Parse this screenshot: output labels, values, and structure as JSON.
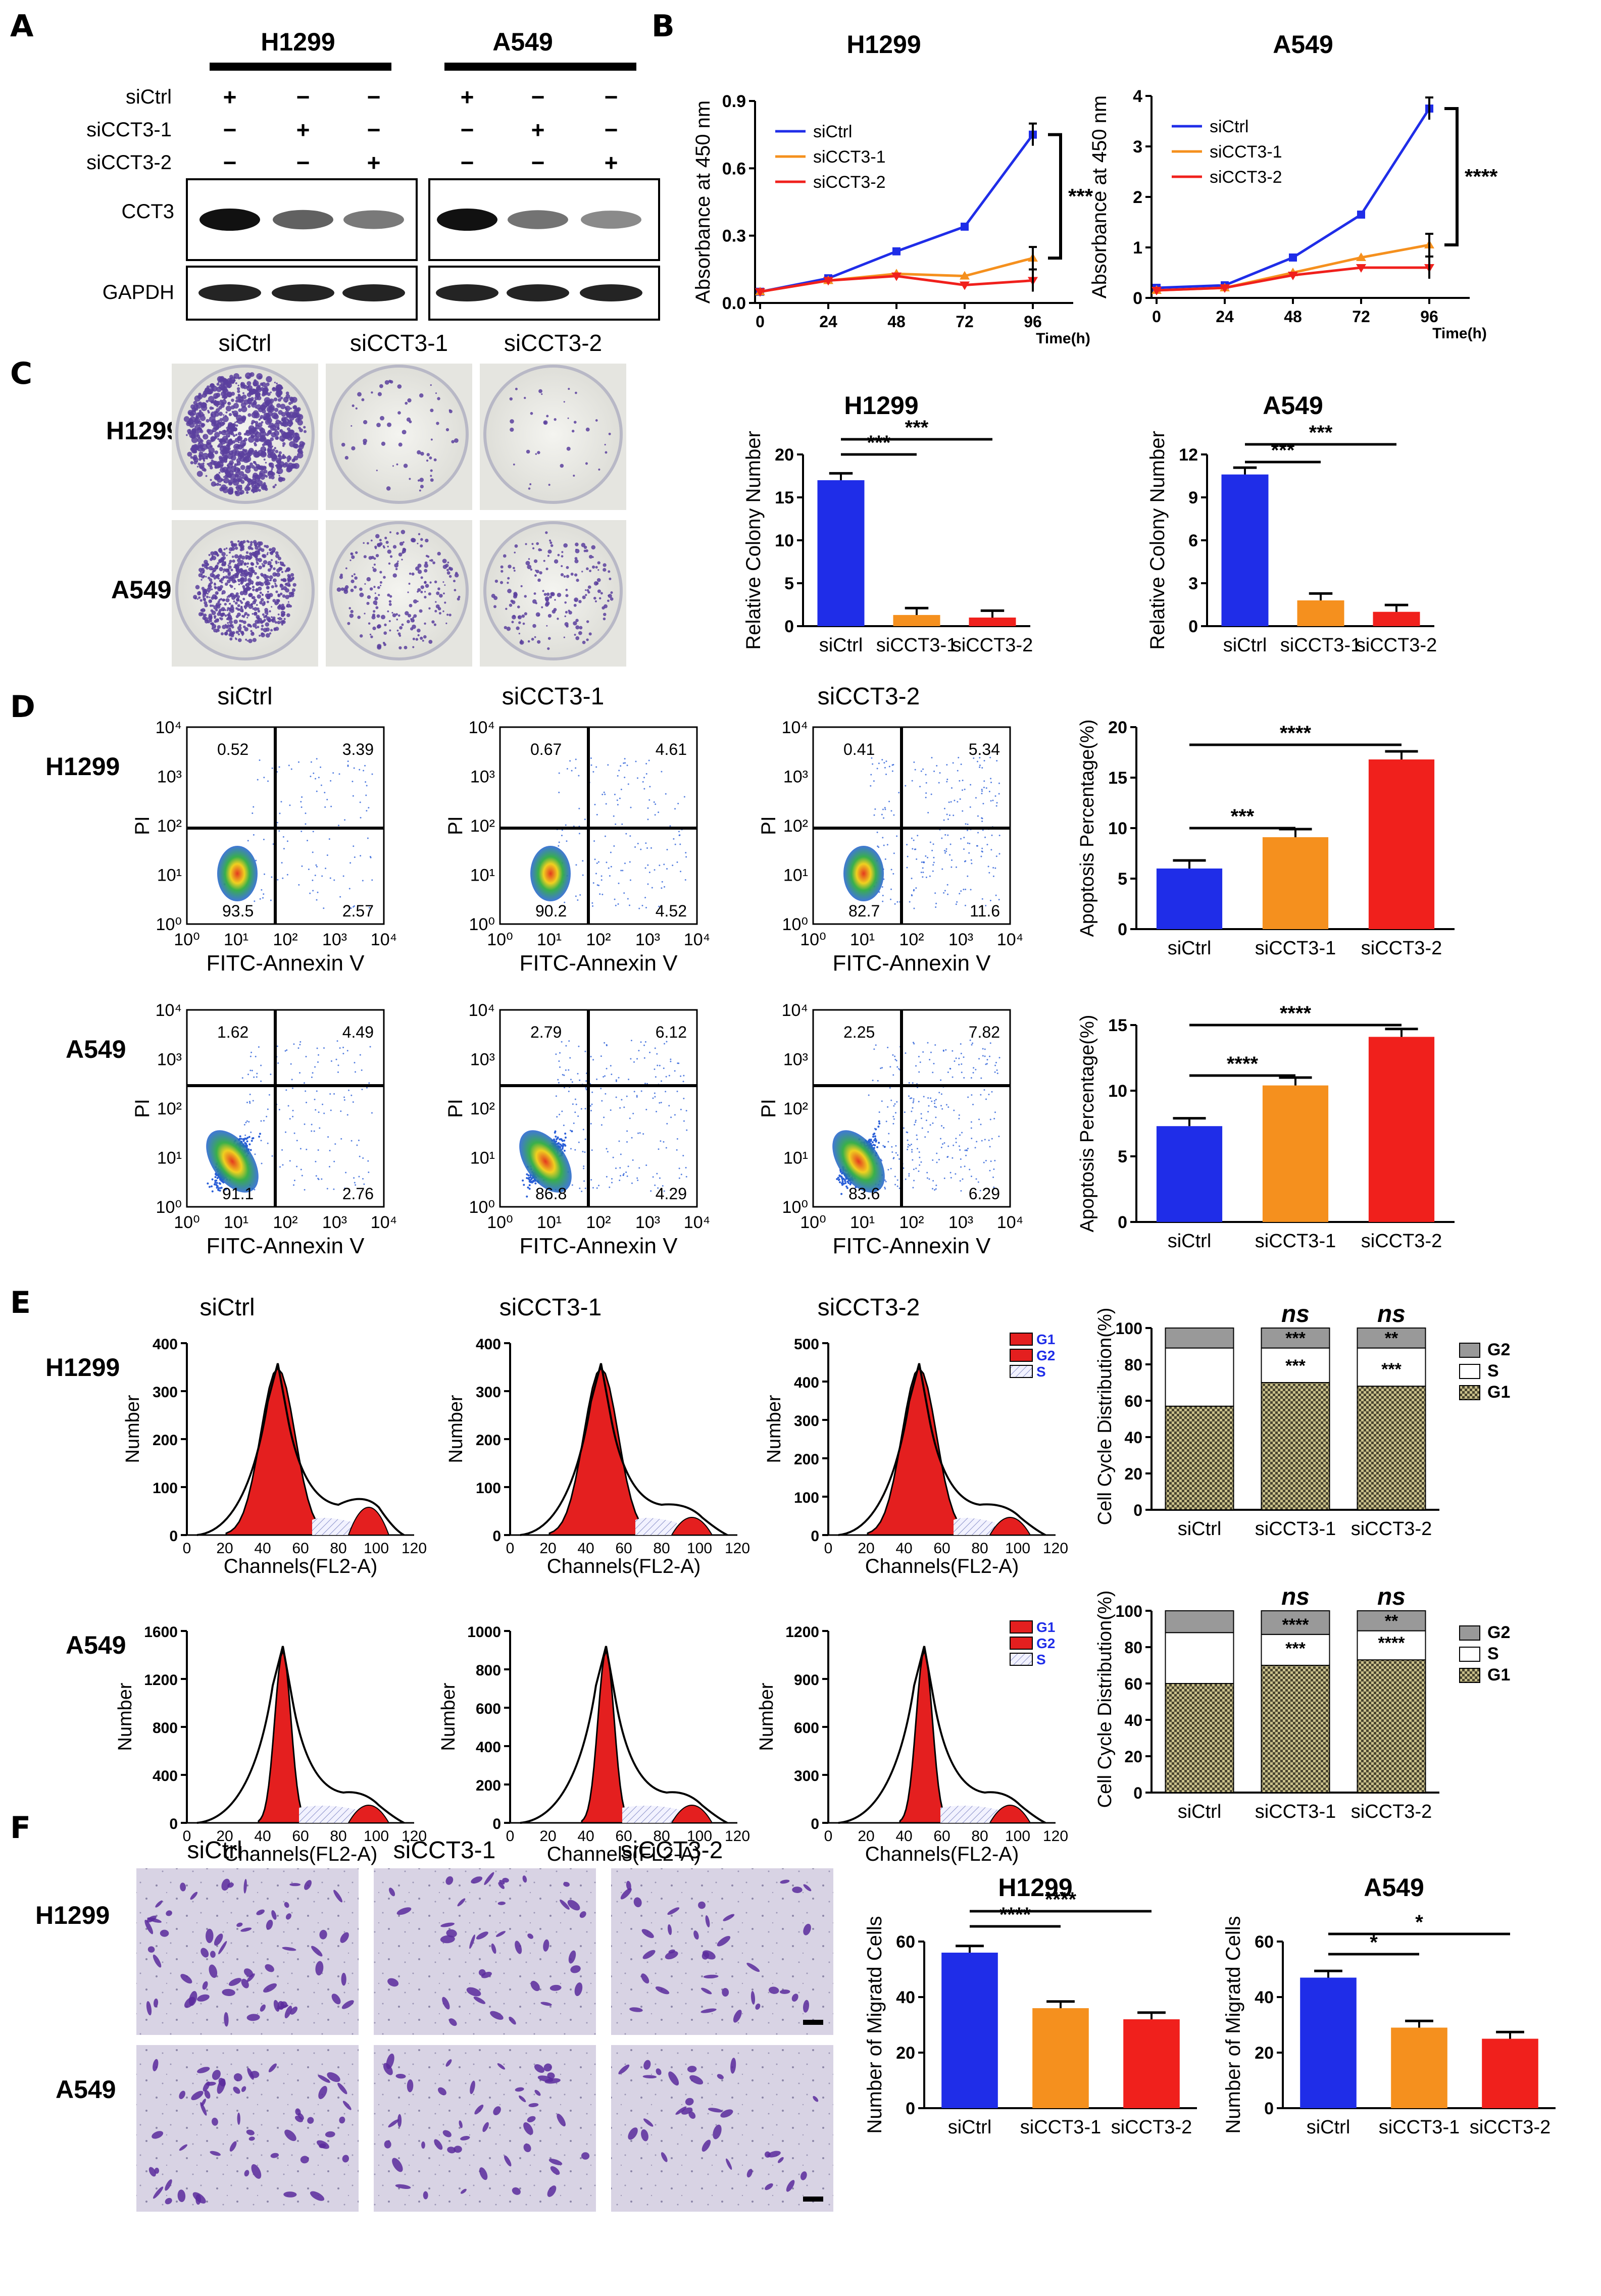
{
  "panels": {
    "A": "A",
    "B": "B",
    "C": "C",
    "D": "D",
    "E": "E",
    "F": "F"
  },
  "lines": {
    "H1299": "H1299",
    "A549": "A549"
  },
  "conditions": [
    "siCtrl",
    "siCCT3-1",
    "siCCT3-2"
  ],
  "western": {
    "row_labels": [
      "siCtrl",
      "siCCT3-1",
      "siCCT3-2"
    ],
    "signs": [
      [
        "+",
        "−",
        "−"
      ],
      [
        "−",
        "+",
        "−"
      ],
      [
        "−",
        "−",
        "+"
      ]
    ],
    "proteins": [
      "CCT3",
      "GAPDH"
    ],
    "cct3_intensity_H1299": [
      1.0,
      0.55,
      0.42
    ],
    "cct3_intensity_A549": [
      1.0,
      0.45,
      0.32
    ]
  },
  "growth": {
    "ylabel": "Absorbance at 450 nm",
    "xlabel": "Time(h)",
    "x": [
      0,
      24,
      48,
      72,
      96
    ],
    "H1299": {
      "ylim": [
        0,
        0.9
      ],
      "yticks": [
        "0.0",
        "0.3",
        "0.6",
        "0.9"
      ],
      "series": [
        {
          "name": "siCtrl",
          "color": "#1f2de8",
          "values": [
            0.05,
            0.11,
            0.23,
            0.34,
            0.75
          ]
        },
        {
          "name": "siCCT3-1",
          "color": "#f5901e",
          "values": [
            0.05,
            0.1,
            0.13,
            0.12,
            0.2
          ]
        },
        {
          "name": "siCCT3-2",
          "color": "#f0201c",
          "values": [
            0.05,
            0.1,
            0.12,
            0.08,
            0.1
          ]
        }
      ],
      "sig": "***"
    },
    "A549": {
      "ylim": [
        0,
        4
      ],
      "yticks": [
        "0",
        "1",
        "2",
        "3",
        "4"
      ],
      "series": [
        {
          "name": "siCtrl",
          "color": "#1f2de8",
          "values": [
            0.2,
            0.25,
            0.8,
            1.65,
            3.75
          ]
        },
        {
          "name": "siCCT3-1",
          "color": "#f5901e",
          "values": [
            0.15,
            0.2,
            0.5,
            0.8,
            1.05
          ]
        },
        {
          "name": "siCCT3-2",
          "color": "#f0201c",
          "values": [
            0.15,
            0.2,
            0.45,
            0.6,
            0.6
          ]
        }
      ],
      "sig": "****"
    }
  },
  "colony": {
    "ylabel": "Relative Colony Number",
    "H1299": {
      "ylim": [
        0,
        20
      ],
      "yticks": [
        "0",
        "5",
        "10",
        "15",
        "20"
      ],
      "values": [
        17,
        1.3,
        1.0
      ],
      "sig": [
        "***",
        "***"
      ]
    },
    "A549": {
      "ylim": [
        0,
        12
      ],
      "yticks": [
        "0",
        "3",
        "6",
        "9",
        "12"
      ],
      "values": [
        10.6,
        1.8,
        1.0
      ],
      "sig": [
        "***",
        "***"
      ]
    }
  },
  "flow": {
    "xlabel": "FITC-Annexin V",
    "ylabel": "PI",
    "H1299": [
      {
        "ul": "0.52",
        "ur": "3.39",
        "ll": "93.5",
        "lr": "2.57"
      },
      {
        "ul": "0.67",
        "ur": "4.61",
        "ll": "90.2",
        "lr": "4.52"
      },
      {
        "ul": "0.41",
        "ur": "5.34",
        "ll": "82.7",
        "lr": "11.6"
      }
    ],
    "A549": [
      {
        "ul": "1.62",
        "ur": "4.49",
        "ll": "91.1",
        "lr": "2.76"
      },
      {
        "ul": "2.79",
        "ur": "6.12",
        "ll": "86.8",
        "lr": "4.29"
      },
      {
        "ul": "2.25",
        "ur": "7.82",
        "ll": "83.6",
        "lr": "6.29"
      }
    ]
  },
  "apoptosis": {
    "ylabel": "Apoptosis Percentage(%)",
    "H1299": {
      "ylim": [
        0,
        20
      ],
      "yticks": [
        "0",
        "5",
        "10",
        "15",
        "20"
      ],
      "values": [
        6.0,
        9.1,
        16.8
      ],
      "sig": [
        "***",
        "****"
      ]
    },
    "A549": {
      "ylim": [
        0,
        15
      ],
      "yticks": [
        "0",
        "5",
        "10",
        "15"
      ],
      "values": [
        7.3,
        10.4,
        14.1
      ],
      "sig": [
        "****",
        "****"
      ]
    }
  },
  "cellcycle": {
    "xlabel": "Channels(FL2-A)",
    "ylabel": "Number",
    "legend": [
      "G1",
      "G2",
      "S"
    ],
    "H1299_xticks": [
      "0",
      "20",
      "40",
      "60",
      "80",
      "100",
      "120"
    ],
    "H1299_yticks": [
      [
        "0",
        "100",
        "200",
        "300",
        "400"
      ],
      [
        "0",
        "100",
        "200",
        "300",
        "400"
      ],
      [
        "0",
        "100",
        "200",
        "300",
        "400",
        "500"
      ]
    ],
    "A549_yticks": [
      [
        "0",
        "400",
        "800",
        "1200",
        "1600"
      ],
      [
        "0",
        "200",
        "400",
        "600",
        "800",
        "1000"
      ],
      [
        "0",
        "300",
        "600",
        "900",
        "1200"
      ]
    ]
  },
  "distribution": {
    "ylabel": "Cell Cycle Distribution(%)",
    "yticks": [
      "0",
      "20",
      "40",
      "60",
      "80",
      "100"
    ],
    "legend": [
      "G2",
      "S",
      "G1"
    ],
    "H1299": {
      "G1": [
        57,
        70,
        68
      ],
      "S": [
        32,
        19,
        21
      ],
      "G2": [
        11,
        11,
        11
      ],
      "sig_top": [
        "",
        "ns",
        "ns"
      ],
      "sig_g2": [
        "",
        "***",
        "**"
      ],
      "sig_s": [
        "",
        "***",
        "***"
      ]
    },
    "A549": {
      "G1": [
        60,
        70,
        73
      ],
      "S": [
        28,
        17,
        16
      ],
      "G2": [
        12,
        13,
        11
      ],
      "sig_top": [
        "",
        "ns",
        "ns"
      ],
      "sig_g2": [
        "",
        "****",
        "**"
      ],
      "sig_s": [
        "",
        "***",
        "****"
      ]
    }
  },
  "migration": {
    "ylabel": "Number of Migratd Cells",
    "H1299": {
      "ylim": [
        0,
        60
      ],
      "yticks": [
        "0",
        "20",
        "40",
        "60"
      ],
      "values": [
        56,
        36,
        32
      ],
      "sig": [
        "****",
        "****"
      ]
    },
    "A549": {
      "ylim": [
        0,
        60
      ],
      "yticks": [
        "0",
        "20",
        "40",
        "60"
      ],
      "values": [
        47,
        29,
        25
      ],
      "sig": [
        "*",
        "*"
      ]
    }
  },
  "colors": {
    "siCtrl": "#1f2de8",
    "siCCT3-1": "#f5901e",
    "siCCT3-2": "#f0201c",
    "crystal": "#5a3f9e"
  }
}
